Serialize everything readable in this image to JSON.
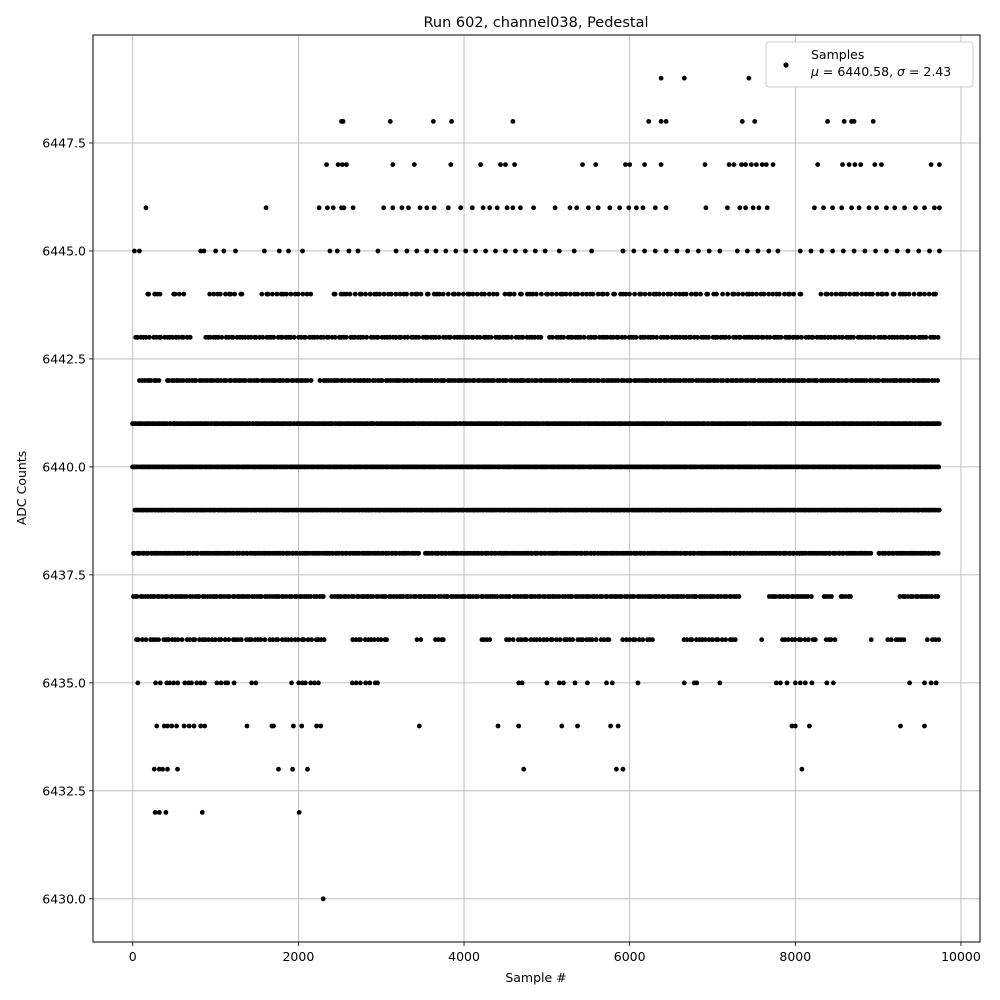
{
  "chart_data": {
    "type": "scatter",
    "title": "Run 602, channel038, Pedestal",
    "xlabel": "Sample #",
    "ylabel": "ADC Counts",
    "xlim": [
      -480,
      10230
    ],
    "ylim": [
      6429.0,
      6450.0
    ],
    "x_ticks": [
      0,
      2000,
      4000,
      6000,
      8000,
      10000
    ],
    "x_tick_labels": [
      "0",
      "2000",
      "4000",
      "6000",
      "8000",
      "10000"
    ],
    "y_ticks": [
      6430.0,
      6432.5,
      6435.0,
      6437.5,
      6440.0,
      6442.5,
      6445.0,
      6447.5
    ],
    "y_tick_labels": [
      "6430.0",
      "6432.5",
      "6435.0",
      "6437.5",
      "6440.0",
      "6442.5",
      "6445.0",
      "6447.5"
    ],
    "grid": true,
    "legend_position": "top-right",
    "marker_color": "#000000",
    "series": [
      {
        "name": "Samples",
        "stats_label_mu": "μ",
        "stats_label_sigma": "σ",
        "stats_equals_mu": " = 6440.58, ",
        "stats_equals_sigma": " = 2.43",
        "mean": 6440.58,
        "sigma": 2.43,
        "n_points": 9740,
        "level_segments": [
          {
            "y": 6449,
            "x": [
              6380,
              6660,
              7440
            ]
          },
          {
            "y": 6448,
            "x": [
              2520,
              2540,
              3110,
              3630,
              3850,
              4590,
              6230,
              6380,
              6440,
              7360,
              7510,
              8390,
              8590,
              8680,
              8710,
              8940
            ]
          },
          {
            "y": 6447,
            "x": [
              2340,
              2480,
              2530,
              2580,
              3140,
              3400,
              3840,
              4200,
              4440,
              4500,
              4610,
              5430,
              5590,
              5950,
              6000,
              6180,
              6380,
              6910,
              7200,
              7260,
              7350,
              7400,
              7470,
              7530,
              7600,
              7650,
              7730,
              8270,
              8570,
              8650,
              8720,
              8790,
              8960,
              9040,
              9640,
              9740
            ]
          },
          {
            "y": 6446,
            "x": [
              160,
              1610,
              2250,
              2350,
              2420,
              2520,
              2550,
              2660,
              3030,
              3140,
              3250,
              3330,
              3470,
              3550,
              3640,
              3810,
              3960,
              4100,
              4230,
              4310,
              4400,
              4520,
              4590,
              4680,
              4840,
              5100,
              5280,
              5360,
              5500,
              5620,
              5760,
              5880,
              5990,
              6080,
              6160,
              6310,
              6440,
              6920,
              7180,
              7330,
              7400,
              7490,
              7560,
              7660,
              8230,
              8340,
              8450,
              8560,
              8680,
              8770,
              8890,
              8980,
              9100,
              9200,
              9320,
              9450,
              9560,
              9680,
              9740
            ]
          },
          {
            "y": 6445,
            "x": [
              20,
              80,
              820,
              860,
              1000,
              1100,
              1240,
              1590,
              1770,
              1880,
              2050,
              2380,
              2470,
              2610,
              2720,
              2960,
              3180,
              3310,
              3430,
              3550,
              3660,
              3780,
              3900,
              4020,
              4140,
              4260,
              4380,
              4500,
              4620,
              4740,
              4860,
              4980,
              5150,
              5330,
              5540,
              5920,
              6050,
              6180,
              6310,
              6440,
              6570,
              6700,
              6830,
              6960,
              7090,
              7300,
              7420,
              7550,
              7680,
              7790,
              8060,
              8190,
              8320,
              8450,
              8580,
              8710,
              8840,
              8970,
              9100,
              9230,
              9360,
              9490,
              9620,
              9740
            ]
          }
        ],
        "level_ranges": [
          {
            "y": 6444,
            "from": 120,
            "to": 9740,
            "step": 45,
            "gaps": [
              [
                330,
                480
              ],
              [
                650,
                900
              ],
              [
                1350,
                1520
              ],
              [
                2180,
                2400
              ],
              [
                4430,
                4470
              ],
              [
                7050,
                7120
              ],
              [
                8140,
                8250
              ]
            ]
          },
          {
            "y": 6443,
            "from": 30,
            "to": 9740,
            "step": 35,
            "gaps": [
              [
                700,
                840
              ],
              [
                4950,
                5010
              ]
            ]
          },
          {
            "y": 6442,
            "from": 80,
            "to": 9740,
            "step": 30,
            "gaps": [
              [
                340,
                400
              ],
              [
                2180,
                2250
              ]
            ]
          },
          {
            "y": 6441,
            "from": 0,
            "to": 9740,
            "step": 20,
            "gaps": []
          },
          {
            "y": 6440,
            "from": 0,
            "to": 9740,
            "step": 18,
            "gaps": []
          },
          {
            "y": 6439,
            "from": 0,
            "to": 9740,
            "step": 20,
            "gaps": []
          },
          {
            "y": 6438,
            "from": 0,
            "to": 9740,
            "step": 24,
            "gaps": [
              [
                3460,
                3520
              ],
              [
                8920,
                8980
              ]
            ]
          },
          {
            "y": 6437,
            "from": 0,
            "to": 9740,
            "step": 30,
            "gaps": [
              [
                2330,
                2400
              ],
              [
                7330,
                7660
              ],
              [
                8210,
                8330
              ],
              [
                8460,
                8520
              ],
              [
                8700,
                9250
              ]
            ]
          },
          {
            "y": 6436,
            "from": 40,
            "to": 9740,
            "step": 40,
            "gaps": [
              [
                2330,
                2600
              ],
              [
                3080,
                3430
              ],
              [
                3500,
                3650
              ],
              [
                3800,
                4190
              ],
              [
                4370,
                4500
              ],
              [
                5750,
                5900
              ],
              [
                6310,
                6630
              ],
              [
                7300,
                7560
              ],
              [
                7620,
                7820
              ],
              [
                8260,
                8350
              ],
              [
                8480,
                8880
              ],
              [
                8950,
                9110
              ],
              [
                9320,
                9560
              ]
            ]
          },
          {
            "y": 6435,
            "from": 60,
            "to": 3020,
            "step": 55,
            "gaps": [
              [
                100,
                260
              ],
              [
                890,
                950
              ],
              [
                1230,
                1390
              ],
              [
                1550,
                1890
              ],
              [
                2300,
                2640
              ]
            ]
          }
        ],
        "extra_points": [
          {
            "x": 4660,
            "y": 6435
          },
          {
            "x": 4700,
            "y": 6435
          },
          {
            "x": 5000,
            "y": 6435
          },
          {
            "x": 5150,
            "y": 6435
          },
          {
            "x": 5200,
            "y": 6435
          },
          {
            "x": 5340,
            "y": 6435
          },
          {
            "x": 5490,
            "y": 6435
          },
          {
            "x": 5720,
            "y": 6435
          },
          {
            "x": 5790,
            "y": 6435
          },
          {
            "x": 6100,
            "y": 6435
          },
          {
            "x": 6660,
            "y": 6435
          },
          {
            "x": 6780,
            "y": 6435
          },
          {
            "x": 6810,
            "y": 6435
          },
          {
            "x": 7090,
            "y": 6435
          },
          {
            "x": 7770,
            "y": 6435
          },
          {
            "x": 7820,
            "y": 6435
          },
          {
            "x": 7900,
            "y": 6435
          },
          {
            "x": 8000,
            "y": 6435
          },
          {
            "x": 8060,
            "y": 6435
          },
          {
            "x": 8120,
            "y": 6435
          },
          {
            "x": 8200,
            "y": 6435
          },
          {
            "x": 8380,
            "y": 6435
          },
          {
            "x": 8460,
            "y": 6435
          },
          {
            "x": 9380,
            "y": 6435
          },
          {
            "x": 9560,
            "y": 6435
          },
          {
            "x": 9640,
            "y": 6435
          },
          {
            "x": 9700,
            "y": 6435
          },
          {
            "x": 290,
            "y": 6434
          },
          {
            "x": 380,
            "y": 6434
          },
          {
            "x": 420,
            "y": 6434
          },
          {
            "x": 470,
            "y": 6434
          },
          {
            "x": 530,
            "y": 6434
          },
          {
            "x": 620,
            "y": 6434
          },
          {
            "x": 680,
            "y": 6434
          },
          {
            "x": 740,
            "y": 6434
          },
          {
            "x": 820,
            "y": 6434
          },
          {
            "x": 870,
            "y": 6434
          },
          {
            "x": 1380,
            "y": 6434
          },
          {
            "x": 1680,
            "y": 6434
          },
          {
            "x": 1700,
            "y": 6434
          },
          {
            "x": 1940,
            "y": 6434
          },
          {
            "x": 2040,
            "y": 6434
          },
          {
            "x": 2220,
            "y": 6434
          },
          {
            "x": 2270,
            "y": 6434
          },
          {
            "x": 3460,
            "y": 6434
          },
          {
            "x": 4410,
            "y": 6434
          },
          {
            "x": 4660,
            "y": 6434
          },
          {
            "x": 5180,
            "y": 6434
          },
          {
            "x": 5370,
            "y": 6434
          },
          {
            "x": 5770,
            "y": 6434
          },
          {
            "x": 5860,
            "y": 6434
          },
          {
            "x": 7960,
            "y": 6434
          },
          {
            "x": 8000,
            "y": 6434
          },
          {
            "x": 8170,
            "y": 6434
          },
          {
            "x": 9270,
            "y": 6434
          },
          {
            "x": 9560,
            "y": 6434
          },
          {
            "x": 260,
            "y": 6433
          },
          {
            "x": 320,
            "y": 6433
          },
          {
            "x": 360,
            "y": 6433
          },
          {
            "x": 420,
            "y": 6433
          },
          {
            "x": 540,
            "y": 6433
          },
          {
            "x": 1760,
            "y": 6433
          },
          {
            "x": 1930,
            "y": 6433
          },
          {
            "x": 2110,
            "y": 6433
          },
          {
            "x": 4720,
            "y": 6433
          },
          {
            "x": 5840,
            "y": 6433
          },
          {
            "x": 5920,
            "y": 6433
          },
          {
            "x": 8080,
            "y": 6433
          },
          {
            "x": 270,
            "y": 6432
          },
          {
            "x": 320,
            "y": 6432
          },
          {
            "x": 400,
            "y": 6432
          },
          {
            "x": 840,
            "y": 6432
          },
          {
            "x": 2010,
            "y": 6432
          },
          {
            "x": 2300,
            "y": 6430
          }
        ]
      }
    ]
  }
}
